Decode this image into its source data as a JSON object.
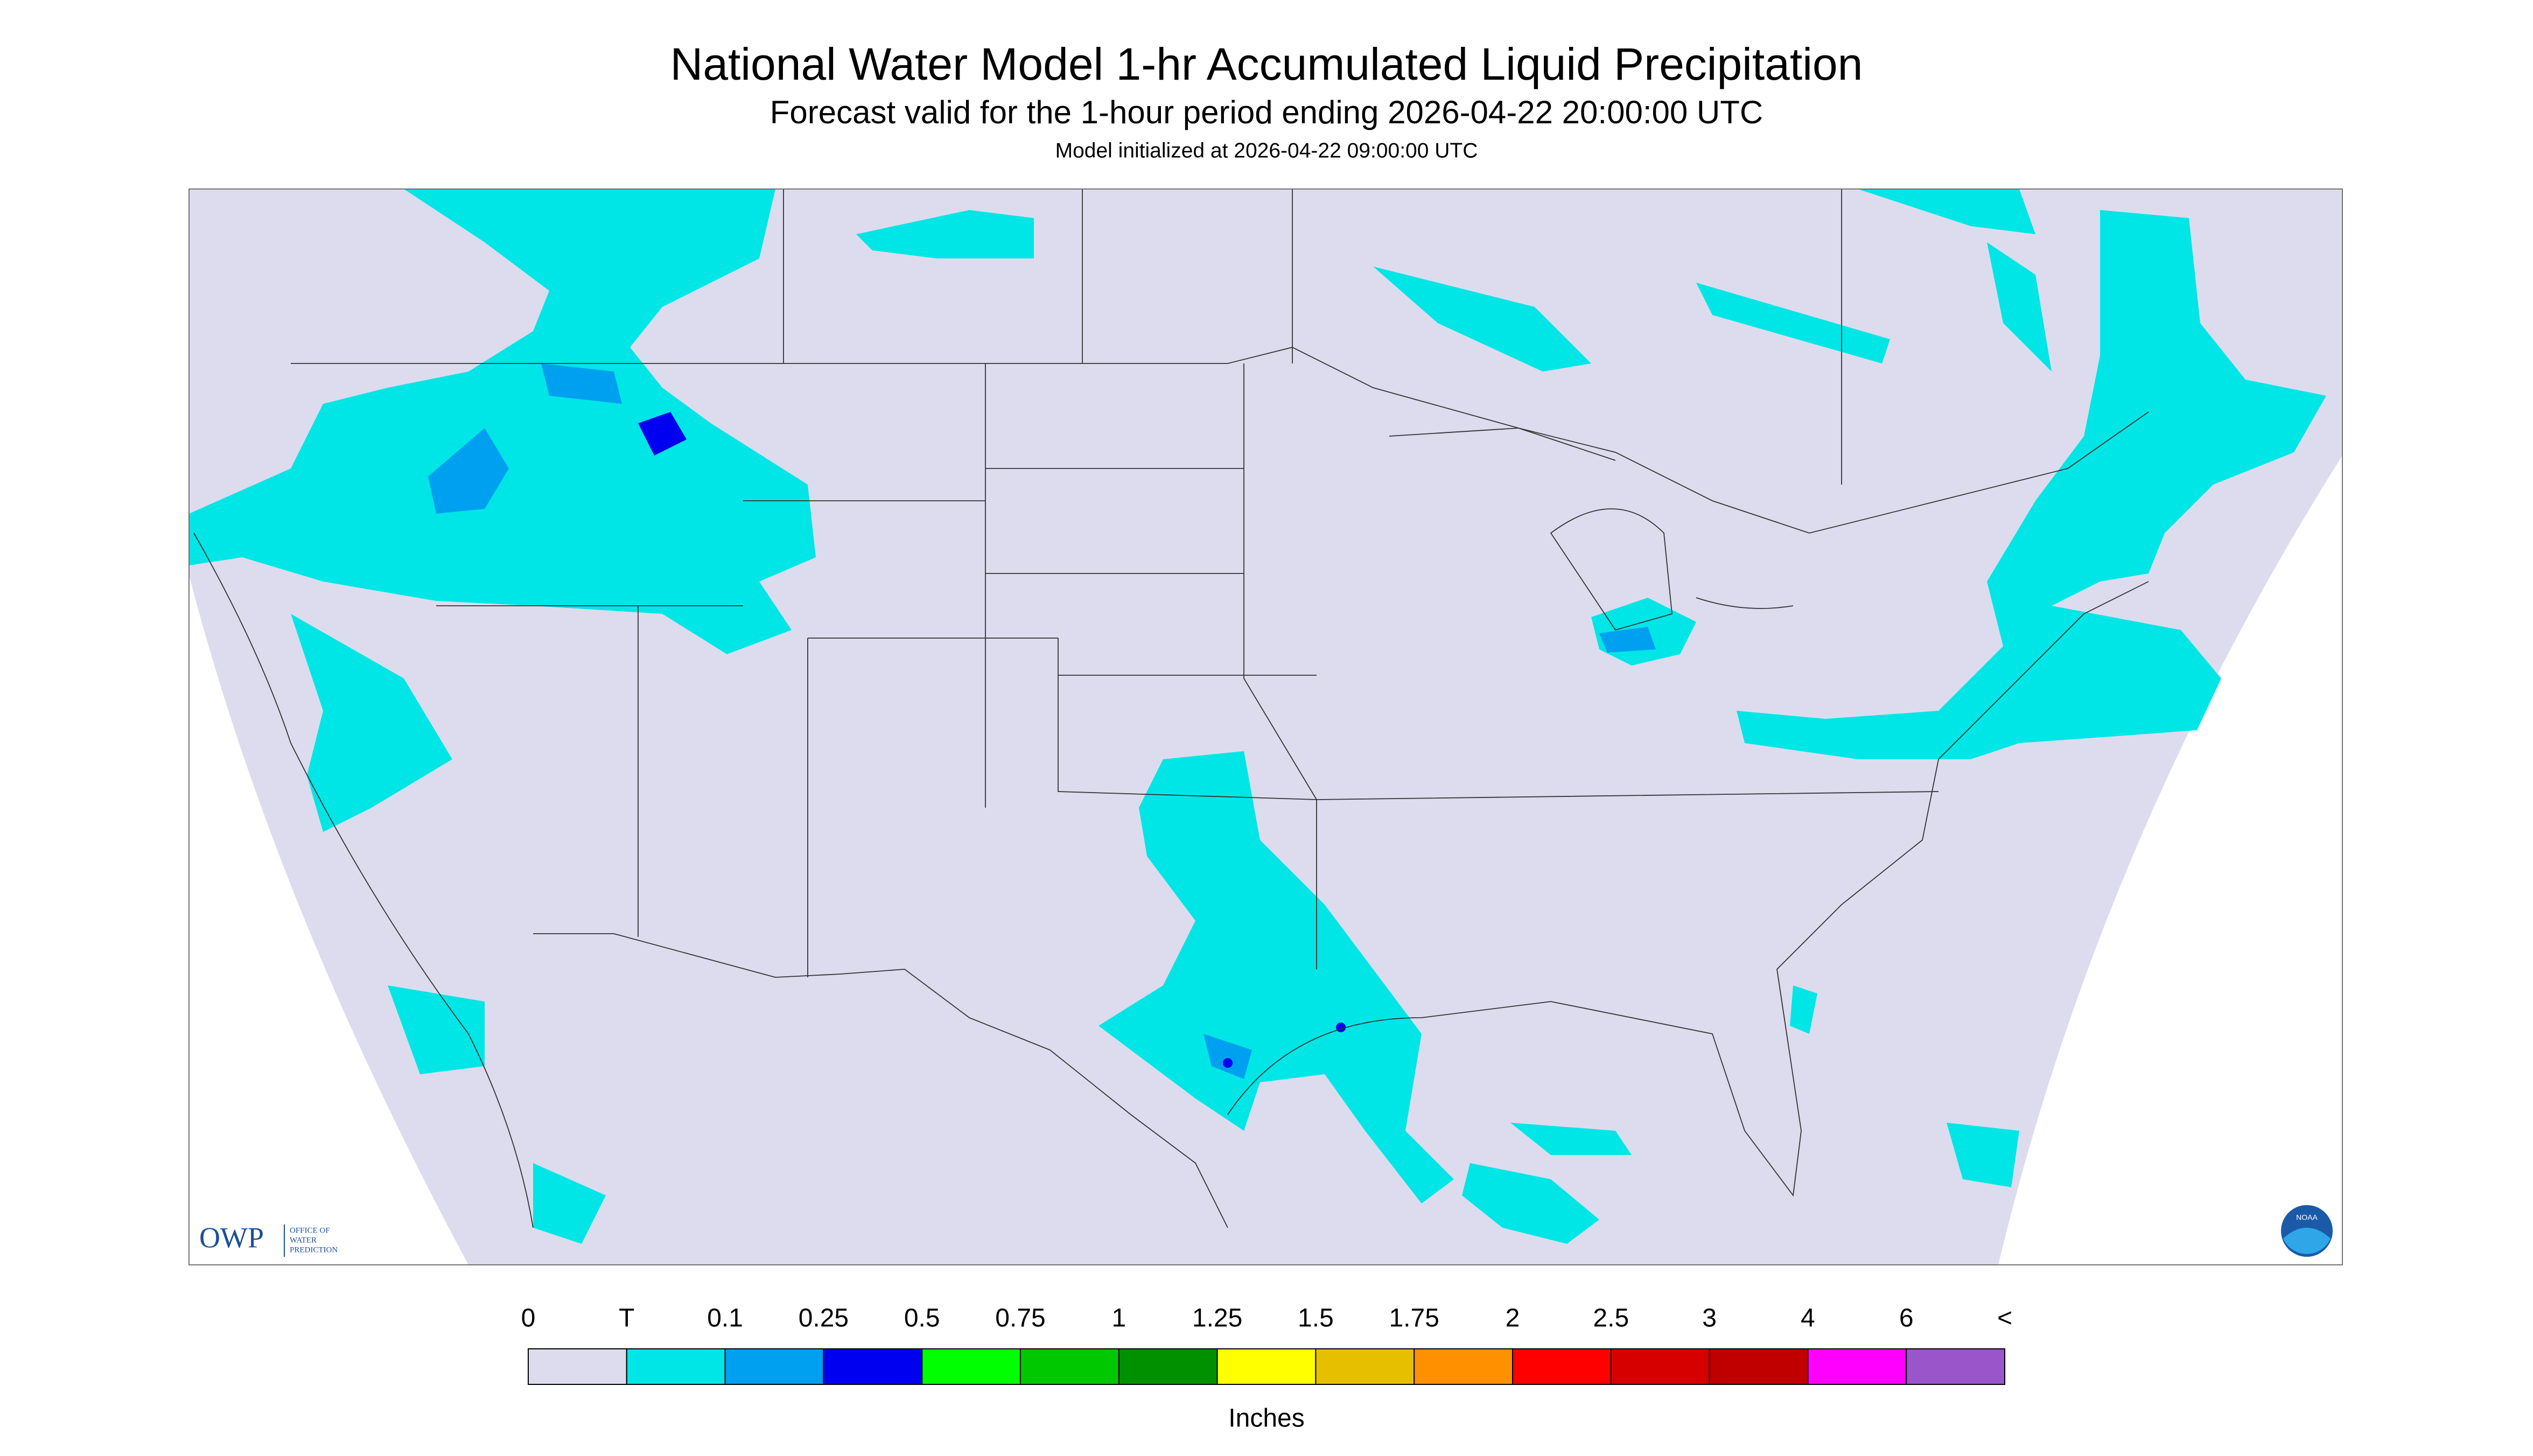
{
  "header": {
    "title": "National Water Model 1-hr Accumulated Liquid Precipitation",
    "subtitle": "Forecast valid for the 1-hour period ending 2026-04-22 20:00:00 UTC",
    "initialized": "Model initialized at 2026-04-22 09:00:00 UTC"
  },
  "legend": {
    "ticks": [
      "0",
      "T",
      "0.1",
      "0.25",
      "0.5",
      "0.75",
      "1",
      "1.25",
      "1.5",
      "1.75",
      "2",
      "2.5",
      "3",
      "4",
      "6",
      "<"
    ],
    "colors": [
      "#dcdcee",
      "#00e6e6",
      "#00a0f0",
      "#0000f0",
      "#00ff00",
      "#00c800",
      "#009000",
      "#ffff00",
      "#e6c000",
      "#ff9000",
      "#ff0000",
      "#d60000",
      "#c00000",
      "#ff00ff",
      "#9955c9"
    ],
    "unit": "Inches"
  },
  "logo": {
    "abbr": "OWP",
    "name": [
      "OFFICE OF",
      "WATER",
      "PREDICTION"
    ],
    "badge": "NOAA"
  }
}
